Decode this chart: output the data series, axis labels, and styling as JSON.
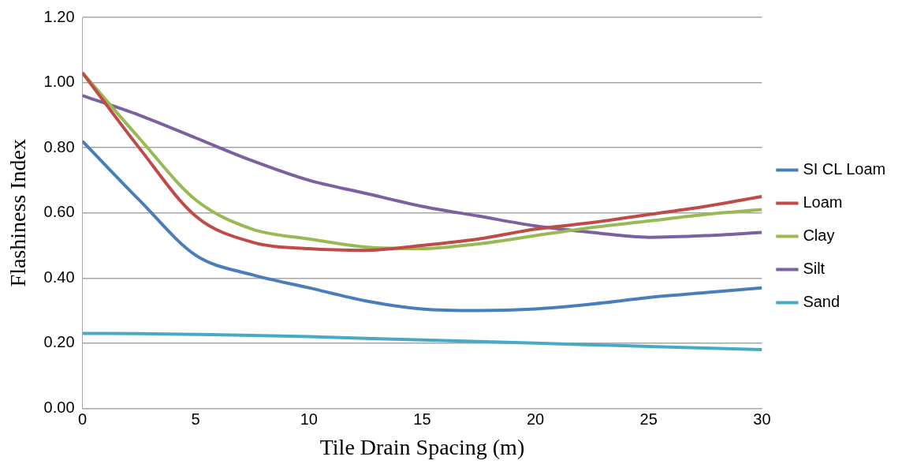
{
  "chart_data": {
    "type": "line",
    "xlabel": "Tile Drain Spacing (m)",
    "ylabel": "Flashiness Index",
    "x": [
      0,
      2.5,
      5,
      7.5,
      10,
      12.5,
      15,
      17.5,
      20,
      22.5,
      25,
      27.5,
      30
    ],
    "series": [
      {
        "name": "SI CL Loam",
        "color": "#4a7ebb",
        "values": [
          0.82,
          0.64,
          0.47,
          0.41,
          0.37,
          0.33,
          0.305,
          0.3,
          0.305,
          0.32,
          0.34,
          0.355,
          0.37
        ]
      },
      {
        "name": "Loam",
        "color": "#be4b48",
        "values": [
          1.03,
          0.8,
          0.59,
          0.51,
          0.49,
          0.485,
          0.5,
          0.52,
          0.55,
          0.57,
          0.595,
          0.62,
          0.65
        ]
      },
      {
        "name": "Clay",
        "color": "#98b954",
        "values": [
          1.03,
          0.83,
          0.64,
          0.55,
          0.52,
          0.495,
          0.49,
          0.505,
          0.53,
          0.555,
          0.575,
          0.595,
          0.61
        ]
      },
      {
        "name": "Silt",
        "color": "#7d60a0",
        "values": [
          0.96,
          0.9,
          0.83,
          0.76,
          0.7,
          0.66,
          0.62,
          0.59,
          0.56,
          0.54,
          0.525,
          0.53,
          0.54
        ]
      },
      {
        "name": "Sand",
        "color": "#46aac5",
        "values": [
          0.23,
          0.229,
          0.227,
          0.224,
          0.22,
          0.215,
          0.21,
          0.205,
          0.2,
          0.195,
          0.19,
          0.185,
          0.18
        ]
      }
    ],
    "xlim": [
      0,
      30
    ],
    "xticks": [
      0,
      5,
      10,
      15,
      20,
      25,
      30
    ],
    "ylim": [
      0,
      1.2
    ],
    "yticks": [
      {
        "value": 0,
        "label": "0.00"
      },
      {
        "value": 0.2,
        "label": "0.20"
      },
      {
        "value": 0.4,
        "label": "0.40"
      },
      {
        "value": 0.6,
        "label": "0.60"
      },
      {
        "value": 0.8,
        "label": "0.80"
      },
      {
        "value": 1,
        "label": "1.00"
      },
      {
        "value": 1.2,
        "label": "1.20"
      }
    ],
    "grid": "y",
    "legend": "right",
    "marker": "none",
    "line_style": "solid"
  }
}
